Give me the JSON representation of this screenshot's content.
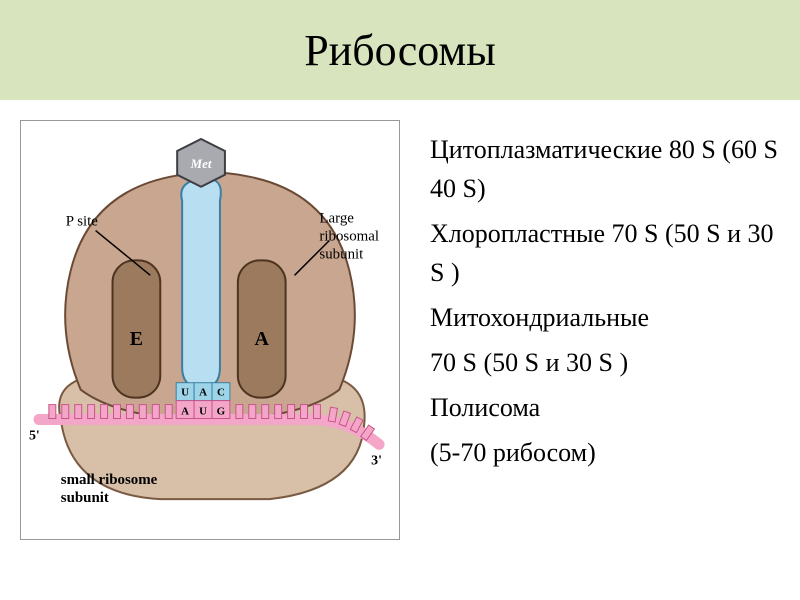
{
  "title": "Рибосомы",
  "title_bar": {
    "bg_color": "#d7e4bd",
    "text_color": "#000000",
    "font_size": 44
  },
  "text_lines": [
    "Цитоплазматические 80 S  (60 S 40 S)",
    "Хлоропластные 70 S (50 S  и 30 S )",
    "Митохондриальные",
    "70 S  (50 S  и 30 S )",
    "Полисома",
    "(5-70 рибосом)"
  ],
  "diagram": {
    "labels": {
      "met": "Met",
      "p_site": "P site",
      "large_subunit": "Large ribosomal subunit",
      "small_subunit": "small ribosome subunit",
      "five_prime": "5'",
      "three_prime": "3'",
      "E": "E",
      "A": "A",
      "codon_top": [
        "U",
        "A",
        "C"
      ],
      "codon_bottom": [
        "A",
        "U",
        "G"
      ]
    },
    "colors": {
      "large_subunit_fill": "#c8a68f",
      "large_subunit_stroke": "#6b4a35",
      "small_subunit_fill": "#d8bfa8",
      "small_subunit_stroke": "#7a5a42",
      "site_fill": "#9c7a5e",
      "site_stroke": "#4d3420",
      "trna_fill": "#b8dff1",
      "trna_stroke": "#3a7fa3",
      "met_fill": "#a8aab0",
      "met_stroke": "#3d3d44",
      "mrna_fill": "#f4a6c9",
      "mrna_stroke": "#c8548a",
      "codon_top_fill": "#9dd4e8",
      "codon_bottom_fill": "#f4a6c9",
      "label_text": "#000000",
      "leader_line": "#000000"
    },
    "font": {
      "label_size": 15,
      "site_letter_size": 20,
      "codon_letter_size": 11,
      "prime_size": 14
    }
  }
}
